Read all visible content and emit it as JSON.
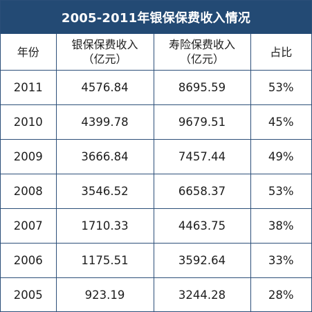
{
  "title": "2005-2011年银保保费收入情况",
  "headers": {
    "year": "年份",
    "bank_line1": "银保保费收入",
    "bank_line2": "（亿元）",
    "life_line1": "寿险保费收入",
    "life_line2": "（亿元）",
    "ratio": "占比"
  },
  "rows": [
    {
      "year": "2011",
      "bank": "4576.84",
      "life": "8695.59",
      "ratio": "53%"
    },
    {
      "year": "2010",
      "bank": "4399.78",
      "life": "9679.51",
      "ratio": "45%"
    },
    {
      "year": "2009",
      "bank": "3666.84",
      "life": "7457.44",
      "ratio": "49%"
    },
    {
      "year": "2008",
      "bank": "3546.52",
      "life": "6658.37",
      "ratio": "53%"
    },
    {
      "year": "2007",
      "bank": "1710.33",
      "life": "4463.75",
      "ratio": "38%"
    },
    {
      "year": "2006",
      "bank": "1175.51",
      "life": "3592.64",
      "ratio": "33%"
    },
    {
      "year": "2005",
      "bank": "923.19",
      "life": "3244.28",
      "ratio": "28%"
    }
  ]
}
